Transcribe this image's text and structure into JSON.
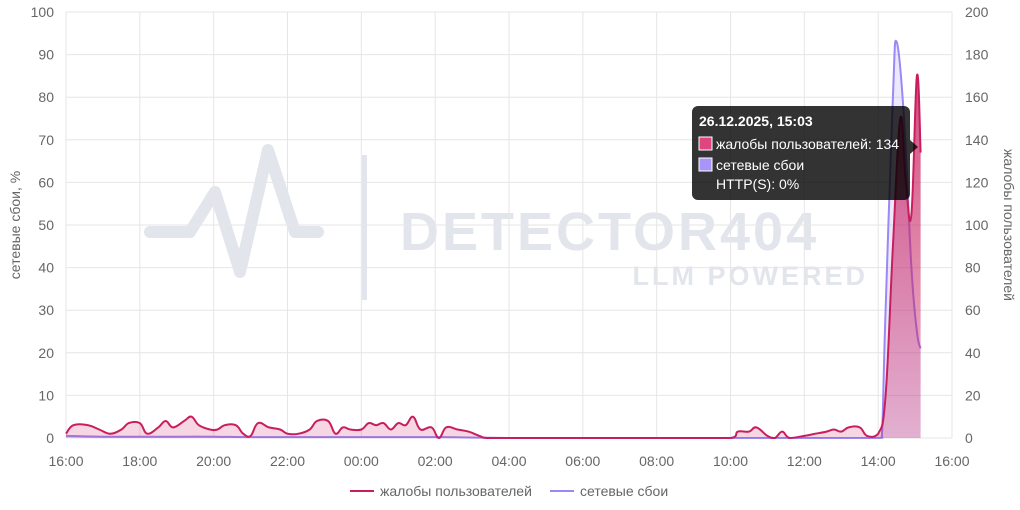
{
  "watermark": {
    "brand": "DETECTOR404",
    "tagline": "LLM POWERED"
  },
  "colors": {
    "complaints": "#c81e5e",
    "complaints_fill": "rgba(200,30,94,0.18)",
    "outages": "#9b87f5",
    "outages_fill": "rgba(155,135,245,0.18)",
    "grid": "#e6e6e6",
    "tooltip_bg": "rgba(0,0,0,0.8)"
  },
  "tooltip": {
    "title": "26.12.2025, 15:03",
    "lines": [
      "жалобы пользователей: 134",
      "сетевые сбои",
      "HTTP(S): 0%"
    ]
  },
  "chart_data": {
    "type": "area",
    "x_unit": "hour of day (continues past midnight: 24 = 00:00, 30 = 06:00, 39 = 15:00)",
    "x_ticks": [
      "16:00",
      "18:00",
      "20:00",
      "22:00",
      "00:00",
      "02:00",
      "04:00",
      "06:00",
      "08:00",
      "10:00",
      "12:00",
      "14:00",
      "16:00"
    ],
    "x_tick_values": [
      16,
      18,
      20,
      22,
      24,
      26,
      28,
      30,
      32,
      34,
      36,
      38,
      40
    ],
    "xlim": [
      16,
      40
    ],
    "ylabel_left": "сетевые сбои, %",
    "ylabel_right": "жалобы пользователей",
    "ylim_left": [
      0,
      100
    ],
    "ylim_right": [
      0,
      200
    ],
    "yticks_left": [
      0,
      10,
      20,
      30,
      40,
      50,
      60,
      70,
      80,
      90,
      100
    ],
    "yticks_right": [
      0,
      20,
      40,
      60,
      80,
      100,
      120,
      140,
      160,
      180,
      200
    ],
    "grid": true,
    "legend_position": "bottom",
    "series": [
      {
        "name": "жалобы пользователей",
        "axis": "right",
        "color": "#c81e5e",
        "points": [
          [
            16.0,
            2
          ],
          [
            16.2,
            6
          ],
          [
            16.6,
            6
          ],
          [
            16.9,
            4
          ],
          [
            17.2,
            2
          ],
          [
            17.5,
            4
          ],
          [
            17.7,
            7
          ],
          [
            18.0,
            7
          ],
          [
            18.2,
            2
          ],
          [
            18.5,
            5
          ],
          [
            18.7,
            8
          ],
          [
            18.9,
            5
          ],
          [
            19.2,
            8
          ],
          [
            19.4,
            10
          ],
          [
            19.6,
            6
          ],
          [
            19.9,
            4
          ],
          [
            20.1,
            4
          ],
          [
            20.3,
            6
          ],
          [
            20.6,
            6
          ],
          [
            20.8,
            2
          ],
          [
            21.0,
            1
          ],
          [
            21.2,
            7
          ],
          [
            21.5,
            5
          ],
          [
            21.8,
            4
          ],
          [
            22.0,
            2
          ],
          [
            22.3,
            2
          ],
          [
            22.6,
            4
          ],
          [
            22.8,
            8
          ],
          [
            23.1,
            8
          ],
          [
            23.3,
            2
          ],
          [
            23.5,
            5
          ],
          [
            23.7,
            4
          ],
          [
            24.0,
            4
          ],
          [
            24.2,
            7
          ],
          [
            24.4,
            6
          ],
          [
            24.6,
            7
          ],
          [
            24.8,
            4
          ],
          [
            25.0,
            7
          ],
          [
            25.2,
            6
          ],
          [
            25.4,
            10
          ],
          [
            25.6,
            4
          ],
          [
            25.9,
            5
          ],
          [
            26.1,
            0
          ],
          [
            26.3,
            5
          ],
          [
            26.6,
            4
          ],
          [
            26.9,
            3
          ],
          [
            27.2,
            1
          ],
          [
            27.4,
            0
          ],
          [
            28.0,
            0
          ],
          [
            29.0,
            0
          ],
          [
            30.0,
            0
          ],
          [
            31.0,
            0
          ],
          [
            32.0,
            0
          ],
          [
            33.0,
            0
          ],
          [
            34.0,
            0
          ],
          [
            34.2,
            3
          ],
          [
            34.5,
            3
          ],
          [
            34.7,
            5
          ],
          [
            35.0,
            1
          ],
          [
            35.2,
            0
          ],
          [
            35.4,
            3
          ],
          [
            35.6,
            0
          ],
          [
            36.0,
            1
          ],
          [
            36.3,
            2
          ],
          [
            36.6,
            3
          ],
          [
            36.8,
            4
          ],
          [
            37.0,
            3
          ],
          [
            37.2,
            5
          ],
          [
            37.5,
            5
          ],
          [
            37.7,
            1
          ],
          [
            38.0,
            2
          ],
          [
            38.2,
            20
          ],
          [
            38.4,
            90
          ],
          [
            38.6,
            150
          ],
          [
            38.75,
            120
          ],
          [
            38.9,
            105
          ],
          [
            39.05,
            170
          ],
          [
            39.15,
            134
          ]
        ]
      },
      {
        "name": "сетевые сбои",
        "axis": "left",
        "color": "#9b87f5",
        "points": [
          [
            16.0,
            0.5
          ],
          [
            17.0,
            0.3
          ],
          [
            18.0,
            0.3
          ],
          [
            19.0,
            0.3
          ],
          [
            20.0,
            0.3
          ],
          [
            21.0,
            0.2
          ],
          [
            22.0,
            0.2
          ],
          [
            23.0,
            0.2
          ],
          [
            24.0,
            0.2
          ],
          [
            25.0,
            0.2
          ],
          [
            26.0,
            0.2
          ],
          [
            27.0,
            0.1
          ],
          [
            28.0,
            0
          ],
          [
            29.0,
            0
          ],
          [
            30.0,
            0
          ],
          [
            31.0,
            0
          ],
          [
            32.0,
            0
          ],
          [
            33.0,
            0
          ],
          [
            34.0,
            0
          ],
          [
            35.0,
            0
          ],
          [
            36.0,
            0
          ],
          [
            37.0,
            0
          ],
          [
            38.0,
            0
          ],
          [
            38.1,
            0.5
          ],
          [
            38.2,
            30
          ],
          [
            38.4,
            80
          ],
          [
            38.5,
            93
          ],
          [
            38.7,
            75
          ],
          [
            38.9,
            40
          ],
          [
            39.05,
            25
          ],
          [
            39.15,
            21
          ]
        ]
      }
    ]
  }
}
